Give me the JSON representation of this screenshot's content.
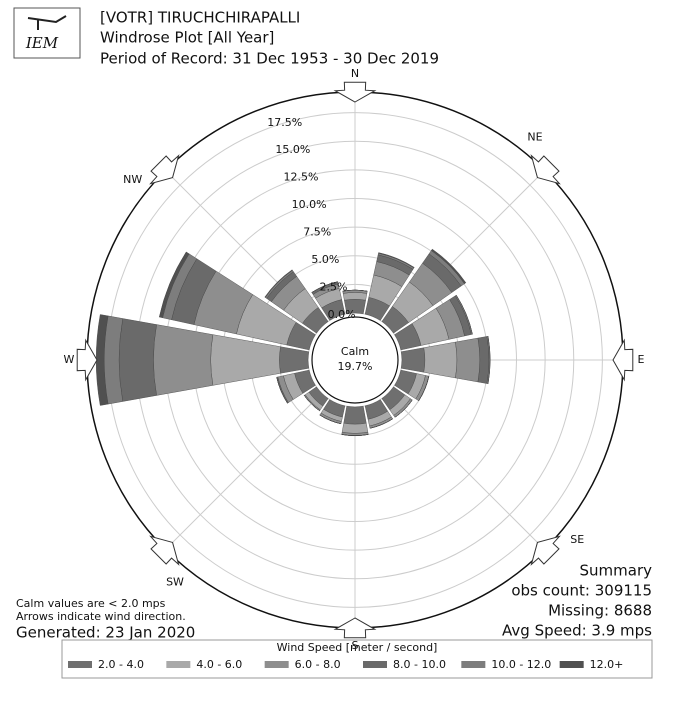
{
  "chart_data": {
    "type": "windrose",
    "logo": "IEM",
    "title": "[VOTR] TIRUCHCHIRAPALLI",
    "subtitle": "Windrose Plot [All Year]",
    "period": "Period of Record: 31 Dec 1953 - 30 Dec 2019",
    "categories": [
      "N",
      null,
      "NE",
      null,
      "E",
      null,
      "SE",
      null,
      "S",
      null,
      "SW",
      null,
      "W",
      null,
      "NW",
      null
    ],
    "rlim": [
      0,
      19.3
    ],
    "rticks": [
      {
        "value": 0,
        "label": "0.0%"
      },
      {
        "value": 2.5,
        "label": "2.5%"
      },
      {
        "value": 5,
        "label": "5.0%"
      },
      {
        "value": 7.5,
        "label": "7.5%"
      },
      {
        "value": 10,
        "label": "10.0%"
      },
      {
        "value": 12.5,
        "label": "12.5%"
      },
      {
        "value": 15,
        "label": "15.0%"
      },
      {
        "value": 17.5,
        "label": "17.5%"
      }
    ],
    "calm": {
      "label": "Calm",
      "value": 19.7,
      "value_label": "19.7%"
    },
    "legend_title": "Wind Speed [meter / second]",
    "series": [
      {
        "name": "2.0 - 4.0",
        "color": "#6f6f6f",
        "values": [
          1.2,
          1.5,
          1.6,
          1.8,
          2.0,
          1.4,
          1.2,
          1.2,
          1.5,
          1.0,
          0.8,
          1.3,
          2.5,
          2.0,
          1.5,
          1.3
        ]
      },
      {
        "name": "4.0 - 6.0",
        "color": "#a9a9a9",
        "values": [
          0.6,
          2.0,
          2.6,
          2.5,
          2.8,
          0.8,
          0.6,
          0.6,
          0.8,
          0.4,
          0.4,
          1.0,
          6.0,
          4.5,
          2.0,
          1.0
        ]
      },
      {
        "name": "6.0 - 8.0",
        "color": "#8e8e8e",
        "values": [
          0.2,
          1.2,
          2.0,
          1.4,
          2.0,
          0.3,
          0.2,
          0.2,
          0.2,
          0.2,
          0.1,
          0.5,
          5.0,
          3.8,
          1.3,
          0.4
        ]
      },
      {
        "name": "8.0 - 10.0",
        "color": "#6a6a6a",
        "values": [
          0,
          0.6,
          1.0,
          0.6,
          0.8,
          0,
          0,
          0,
          0,
          0,
          0,
          0.1,
          3.0,
          2.0,
          0.5,
          0.2
        ]
      },
      {
        "name": "10.0 - 12.0",
        "color": "#7d7d7d",
        "values": [
          0,
          0.15,
          0.35,
          0.1,
          0.1,
          0,
          0,
          0,
          0,
          0,
          0,
          0,
          1.3,
          0.8,
          0.15,
          0
        ]
      },
      {
        "name": "12.0+",
        "color": "#505050",
        "values": [
          0,
          0.05,
          0.15,
          0,
          0,
          0,
          0,
          0,
          0,
          0,
          0,
          0,
          0.7,
          0.3,
          0.05,
          0
        ]
      }
    ],
    "notes": [
      "Calm values are < 2.0 mps",
      "Arrows indicate wind direction."
    ],
    "generated": "Generated: 23 Jan 2020",
    "summary": [
      "Summary",
      "obs count: 309115",
      "Missing: 8688",
      "Avg Speed: 3.9 mps"
    ]
  }
}
